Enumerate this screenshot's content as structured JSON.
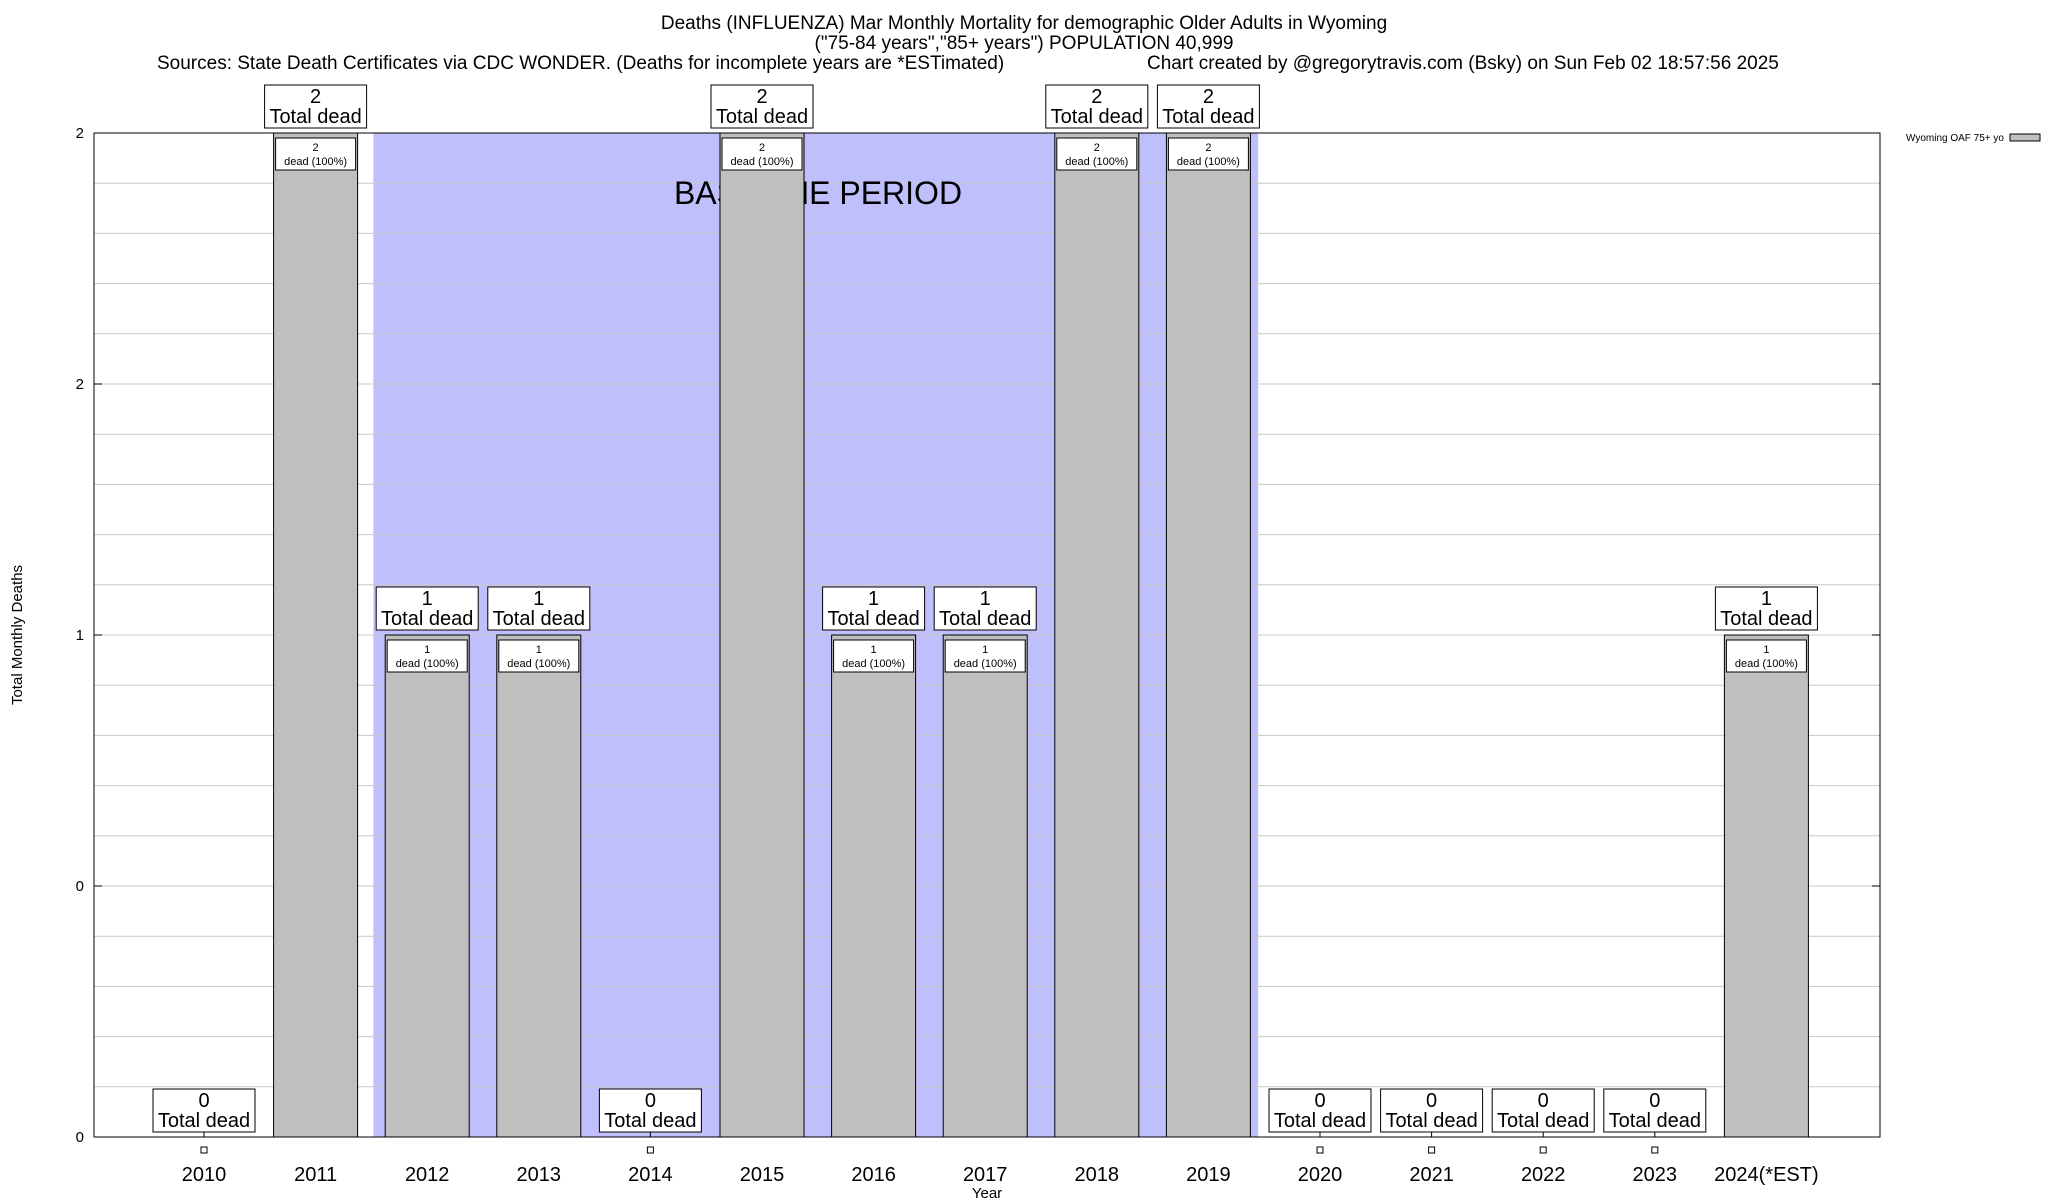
{
  "chart_data": {
    "type": "bar",
    "title_lines": [
      "Deaths (INFLUENZA) Mar Monthly Mortality for demographic Older Adults in Wyoming",
      "(\"75-84 years\",\"85+ years\") POPULATION 40,999"
    ],
    "sources": "Sources: State Death Certificates via CDC WONDER. (Deaths for incomplete years are *ESTimated)",
    "credit": "Chart created by @gregorytravis.com (Bsky) on Sun Feb 02 18:57:56 2025",
    "xlabel": "Year",
    "ylabel": "Total Monthly Deaths",
    "legend": {
      "label": "Wyoming OAF 75+ yo",
      "placement": "top-right outside"
    },
    "baseline_label": "BASELINE PERIOD",
    "baseline_range": [
      "2012",
      "2019"
    ],
    "ylim": [
      0,
      2
    ],
    "y_tick_labels": [
      "0",
      "0",
      "1",
      "2",
      "2"
    ],
    "categories": [
      "2010",
      "2011",
      "2012",
      "2013",
      "2014",
      "2015",
      "2016",
      "2017",
      "2018",
      "2019",
      "2020",
      "2021",
      "2022",
      "2023",
      "2024(*EST)"
    ],
    "values": [
      0,
      2,
      1,
      1,
      0,
      2,
      1,
      1,
      2,
      2,
      0,
      0,
      0,
      0,
      1
    ],
    "total_caption": "Total dead",
    "bar_caption": "dead (100%)",
    "colors": {
      "bar": "#bfbfbf",
      "baseline": "#bfbffc",
      "grid": "#c8c8c8"
    },
    "grid": true
  }
}
